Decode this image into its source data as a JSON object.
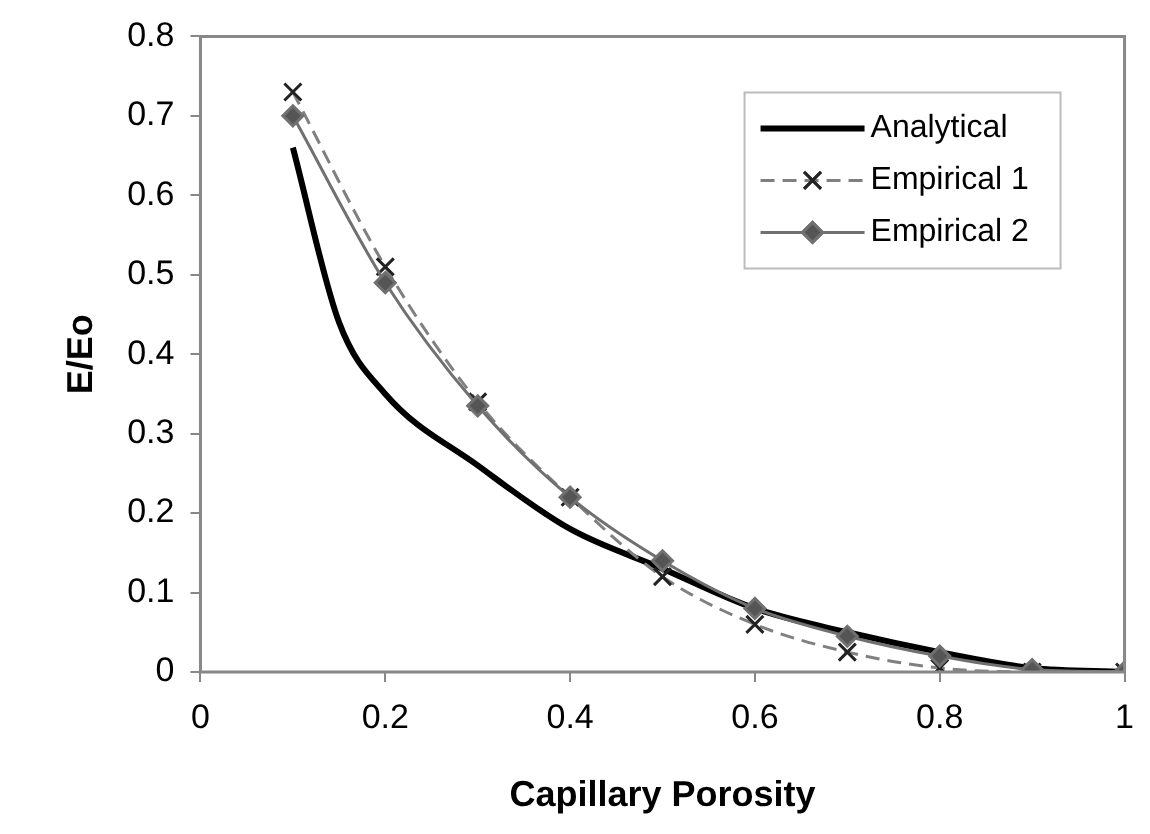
{
  "chart_data": {
    "type": "line",
    "xlabel": "Capillary Porosity",
    "ylabel": "E/Eo",
    "xlim": [
      0,
      1
    ],
    "xticks": [
      0,
      0.2,
      0.4,
      0.6,
      0.8,
      1
    ],
    "ylim": [
      0,
      0.8
    ],
    "yticks": [
      0,
      0.1,
      0.2,
      0.3,
      0.4,
      0.5,
      0.6,
      0.7,
      0.8
    ],
    "grid": false,
    "legend": "top right",
    "series": [
      {
        "name": "Analytical",
        "color": "#000000",
        "marker": "none",
        "line_style": "solid",
        "x": [
          0.1,
          0.15,
          0.2,
          0.3,
          0.4,
          0.5,
          0.6,
          0.7,
          0.8,
          0.9,
          1
        ],
        "values": [
          0.66,
          0.44,
          0.35,
          0.26,
          0.18,
          0.13,
          0.08,
          0.05,
          0.025,
          0.005,
          0
        ]
      },
      {
        "name": "Empirical 1",
        "color": "#808080",
        "marker": "cross",
        "line_style": "dashed",
        "x": [
          0.1,
          0.2,
          0.3,
          0.4,
          0.5,
          0.6,
          0.7,
          0.8,
          0.9,
          1
        ],
        "values": [
          0.73,
          0.51,
          0.34,
          0.22,
          0.12,
          0.06,
          0.025,
          0.005,
          0,
          0
        ]
      },
      {
        "name": "Empirical 2",
        "color": "#707070",
        "marker": "diamond",
        "line_style": "solid",
        "x": [
          0.1,
          0.2,
          0.3,
          0.4,
          0.5,
          0.6,
          0.7,
          0.8,
          0.9,
          1
        ],
        "values": [
          0.7,
          0.49,
          0.335,
          0.22,
          0.14,
          0.08,
          0.045,
          0.02,
          0.003,
          0
        ]
      }
    ]
  }
}
